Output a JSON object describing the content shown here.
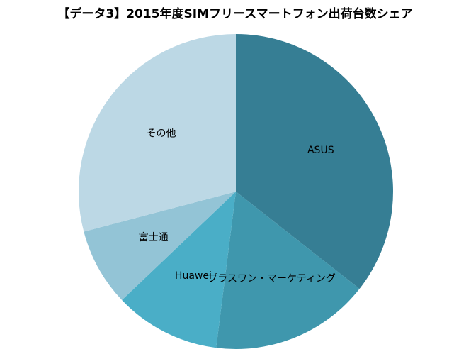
{
  "chart_data": {
    "type": "pie",
    "title": "【データ3】2015年度SIMフリースマートフォン出荷台数シェア",
    "categories": [
      "ASUS",
      "プラスワン・マーケティング",
      "Huawei",
      "富士通",
      "その他"
    ],
    "values": [
      35.6,
      16.4,
      10.9,
      8.0,
      29.1
    ],
    "colors": [
      "#367e94",
      "#3f97ad",
      "#4aaec7",
      "#93c4d6",
      "#bcd8e5"
    ]
  }
}
